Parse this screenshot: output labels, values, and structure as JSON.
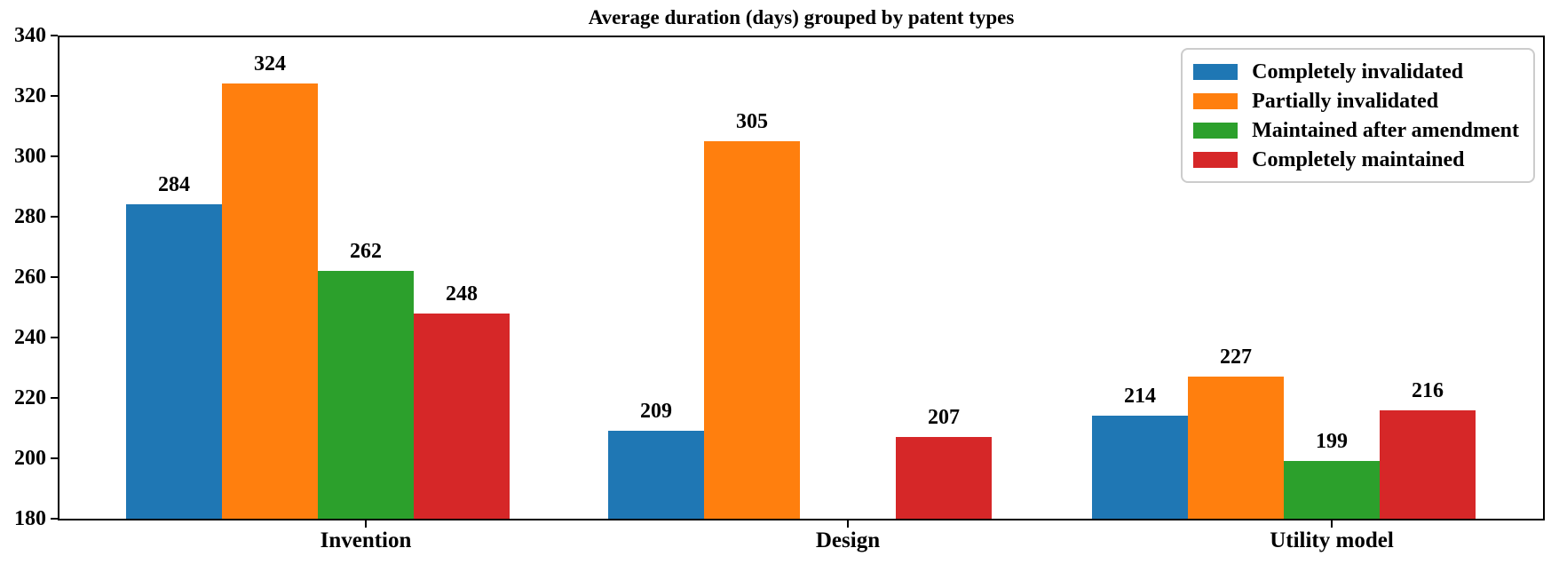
{
  "chart_data": {
    "type": "bar",
    "title": "Average duration (days) grouped by patent types",
    "categories": [
      "Invention",
      "Design",
      "Utility model"
    ],
    "series": [
      {
        "name": "Completely invalidated",
        "color": "#1f77b4",
        "values": [
          284,
          209,
          214
        ]
      },
      {
        "name": "Partially invalidated",
        "color": "#ff7f0e",
        "values": [
          324,
          305,
          227
        ]
      },
      {
        "name": "Maintained after amendment",
        "color": "#2ca02c",
        "values": [
          262,
          null,
          199
        ]
      },
      {
        "name": "Completely maintained",
        "color": "#d62728",
        "values": [
          248,
          207,
          216
        ]
      }
    ],
    "ylim": [
      180,
      340
    ],
    "yticks": [
      180,
      200,
      220,
      240,
      260,
      280,
      300,
      320,
      340
    ],
    "xlabel": "",
    "ylabel": "",
    "grid": false,
    "bar_value_labels": true,
    "legend_position": "upper right"
  },
  "colors": {
    "text": "#000000",
    "spine": "#000000",
    "legend_border": "#cccccc",
    "background": "#ffffff"
  }
}
